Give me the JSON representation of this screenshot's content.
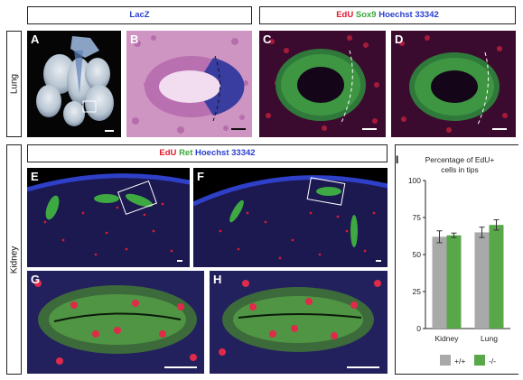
{
  "headers": {
    "lacz": "LacZ",
    "top_right": {
      "edu": "EdU",
      "sox9": "Sox9",
      "hoechst": "Hoechst 33342"
    },
    "kidney": {
      "edu": "EdU",
      "ret": "Ret",
      "hoechst": "Hoechst 33342"
    }
  },
  "rows": {
    "lung": "Lung",
    "kidney": "Kidney"
  },
  "panels": {
    "A": "A",
    "B": "B",
    "C": "C",
    "D": "D",
    "E": "E",
    "F": "F",
    "G": "G",
    "H": "H"
  },
  "chart_label": "I",
  "colors": {
    "wt": "#a9a9a9",
    "ko": "#58a84a",
    "edu": "#e0182a",
    "green": "#3aa63a",
    "blue": "#2a3ed0"
  },
  "chart_data": {
    "type": "bar",
    "title": "Percentage of EdU+ cells in tips",
    "title_lines": [
      "Percentage of EdU+",
      "cells in tips"
    ],
    "categories": [
      "Kidney",
      "Lung"
    ],
    "series": [
      {
        "name": "+/+",
        "values": [
          62,
          65
        ],
        "errors": [
          4,
          3.5
        ]
      },
      {
        "name": "-/-",
        "values": [
          63,
          70
        ],
        "errors": [
          1.5,
          3.5
        ]
      }
    ],
    "yticks": [
      0,
      25,
      50,
      75,
      100
    ],
    "ylim": [
      0,
      100
    ],
    "legend_position": "bottom"
  }
}
